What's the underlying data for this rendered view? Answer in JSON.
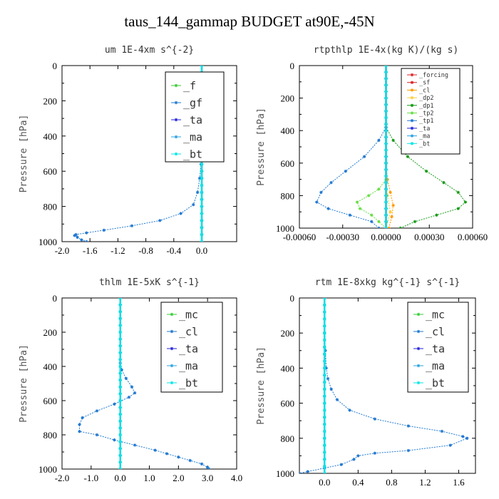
{
  "page_title": "taus_144_gammap  BUDGET at90E,-45N",
  "chart_data": [
    {
      "type": "line",
      "title": "um   1E-4xm s^{-2}",
      "ylabel": "Pressure [hPa]",
      "xlim": [
        -2.0,
        0.5
      ],
      "ylim": [
        1000,
        0
      ],
      "x_ticks": [
        "-2.0",
        "-1.6",
        "-1.2",
        "-0.8",
        "-0.4",
        "0.0"
      ],
      "x_tick_values": [
        -2.0,
        -1.6,
        -1.2,
        -0.8,
        -0.4,
        0.0
      ],
      "y_ticks": [
        "0",
        "200",
        "400",
        "600",
        "800",
        "1000"
      ],
      "grid": false,
      "legend": "top-right",
      "series": [
        {
          "name": "_f",
          "color": "#33cc33",
          "points": [
            [
              0,
              0
            ],
            [
              0,
              200
            ],
            [
              0,
              400
            ],
            [
              0,
              600
            ],
            [
              0,
              800
            ],
            [
              0,
              1000
            ]
          ]
        },
        {
          "name": "_gf",
          "color": "#1f78d1",
          "points": [
            [
              0,
              0
            ],
            [
              0,
              200
            ],
            [
              0,
              400
            ],
            [
              0,
              500
            ],
            [
              -0.01,
              560
            ],
            [
              -0.03,
              640
            ],
            [
              -0.06,
              720
            ],
            [
              -0.12,
              790
            ],
            [
              -0.3,
              840
            ],
            [
              -0.6,
              880
            ],
            [
              -1.0,
              910
            ],
            [
              -1.4,
              935
            ],
            [
              -1.65,
              950
            ],
            [
              -1.8,
              960
            ],
            [
              -1.82,
              965
            ],
            [
              -1.78,
              975
            ],
            [
              -1.72,
              990
            ],
            [
              -1.65,
              1000
            ]
          ]
        },
        {
          "name": "_ta",
          "color": "#2222dd",
          "points": [
            [
              0,
              0
            ],
            [
              0,
              1000
            ]
          ]
        },
        {
          "name": "_ma",
          "color": "#29a3e0",
          "points": [
            [
              0,
              0
            ],
            [
              0,
              1000
            ]
          ]
        },
        {
          "name": "_bt",
          "color": "#00e5e5",
          "points": [
            [
              0,
              0
            ],
            [
              0,
              1000
            ]
          ]
        }
      ]
    },
    {
      "type": "line",
      "title": "rtpthlp   1E-4x(kg K)/(kg s)",
      "ylabel": "Pressure [hPa]",
      "xlim": [
        -0.0006,
        0.0006
      ],
      "ylim": [
        1000,
        0
      ],
      "x_ticks": [
        "-0.00060",
        "-0.00030",
        "0.00000",
        "0.00030",
        "0.00060"
      ],
      "x_tick_values": [
        -0.0006,
        -0.0003,
        0.0,
        0.0003,
        0.0006
      ],
      "y_ticks": [
        "0",
        "200",
        "400",
        "600",
        "800",
        "1000"
      ],
      "grid": false,
      "legend": "top-right",
      "series": [
        {
          "name": "_forcing",
          "color": "#dd2222",
          "points": [
            [
              0,
              0
            ],
            [
              0,
              1000
            ]
          ]
        },
        {
          "name": "_sf",
          "color": "#dd2222",
          "points": [
            [
              0,
              0
            ],
            [
              0,
              1000
            ]
          ]
        },
        {
          "name": "_cl",
          "color": "#ff9900",
          "points": [
            [
              0,
              0
            ],
            [
              0,
              600
            ],
            [
              1e-05,
              700
            ],
            [
              3e-05,
              780
            ],
            [
              5e-05,
              860
            ],
            [
              4e-05,
              930
            ],
            [
              2e-05,
              1000
            ]
          ]
        },
        {
          "name": "_dp2",
          "color": "#ffcc33",
          "points": [
            [
              0,
              0
            ],
            [
              0,
              700
            ],
            [
              1e-05,
              800
            ],
            [
              3e-05,
              900
            ],
            [
              0,
              1000
            ]
          ]
        },
        {
          "name": "_dp1",
          "color": "#119911",
          "points": [
            [
              0,
              0
            ],
            [
              0,
              380
            ],
            [
              5e-05,
              460
            ],
            [
              0.00015,
              560
            ],
            [
              0.00028,
              650
            ],
            [
              0.0004,
              720
            ],
            [
              0.0005,
              780
            ],
            [
              0.00055,
              840
            ],
            [
              0.0005,
              880
            ],
            [
              0.00035,
              920
            ],
            [
              0.0002,
              960
            ],
            [
              0.0001,
              1000
            ]
          ]
        },
        {
          "name": "_tp2",
          "color": "#66dd44",
          "points": [
            [
              0,
              0
            ],
            [
              0,
              700
            ],
            [
              -5e-05,
              760
            ],
            [
              -0.00012,
              800
            ],
            [
              -0.0002,
              840
            ],
            [
              -0.00018,
              880
            ],
            [
              -0.0001,
              920
            ],
            [
              -5e-05,
              960
            ],
            [
              0,
              1000
            ]
          ]
        },
        {
          "name": "_tp1",
          "color": "#1f78d1",
          "points": [
            [
              0,
              0
            ],
            [
              0,
              380
            ],
            [
              -5e-05,
              460
            ],
            [
              -0.00015,
              560
            ],
            [
              -0.00028,
              650
            ],
            [
              -0.00038,
              720
            ],
            [
              -0.00045,
              780
            ],
            [
              -0.00048,
              840
            ],
            [
              -0.0004,
              880
            ],
            [
              -0.00025,
              920
            ],
            [
              -0.0001,
              960
            ],
            [
              -5e-05,
              1000
            ]
          ]
        },
        {
          "name": "_ta",
          "color": "#2222dd",
          "points": [
            [
              0,
              0
            ],
            [
              0,
              1000
            ]
          ]
        },
        {
          "name": "_ma",
          "color": "#29a3e0",
          "points": [
            [
              0,
              0
            ],
            [
              0,
              1000
            ]
          ]
        },
        {
          "name": "_bt",
          "color": "#00e5e5",
          "points": [
            [
              0,
              0
            ],
            [
              0,
              1000
            ]
          ]
        }
      ]
    },
    {
      "type": "line",
      "title": "thlm   1E-5xK s^{-1}",
      "ylabel": "Pressure [hPa]",
      "xlim": [
        -2.0,
        4.0
      ],
      "ylim": [
        1000,
        0
      ],
      "x_ticks": [
        "-2.0",
        "-1.0",
        "0.0",
        "1.0",
        "2.0",
        "3.0",
        "4.0"
      ],
      "x_tick_values": [
        -2.0,
        -1.0,
        0.0,
        1.0,
        2.0,
        3.0,
        4.0
      ],
      "y_ticks": [
        "0",
        "200",
        "400",
        "600",
        "800",
        "1000"
      ],
      "grid": false,
      "legend": "top-right",
      "series": [
        {
          "name": "_mc",
          "color": "#33cc33",
          "points": [
            [
              0,
              0
            ],
            [
              0,
              200
            ],
            [
              0,
              400
            ],
            [
              0,
              600
            ],
            [
              0,
              800
            ],
            [
              0,
              1000
            ]
          ]
        },
        {
          "name": "_cl",
          "color": "#1f78d1",
          "points": [
            [
              0,
              0
            ],
            [
              0,
              380
            ],
            [
              0.05,
              420
            ],
            [
              0.2,
              470
            ],
            [
              0.4,
              520
            ],
            [
              0.5,
              555
            ],
            [
              0.3,
              580
            ],
            [
              -0.2,
              620
            ],
            [
              -0.8,
              660
            ],
            [
              -1.3,
              700
            ],
            [
              -1.4,
              740
            ],
            [
              -1.4,
              780
            ],
            [
              -0.8,
              800
            ],
            [
              -0.2,
              830
            ],
            [
              0.5,
              860
            ],
            [
              1.2,
              890
            ],
            [
              1.6,
              910
            ],
            [
              2.0,
              930
            ],
            [
              2.4,
              950
            ],
            [
              2.8,
              970
            ],
            [
              3.0,
              990
            ],
            [
              3.05,
              1000
            ]
          ]
        },
        {
          "name": "_ta",
          "color": "#2222dd",
          "points": [
            [
              0,
              0
            ],
            [
              0,
              1000
            ]
          ]
        },
        {
          "name": "_ma",
          "color": "#29a3e0",
          "points": [
            [
              0,
              0
            ],
            [
              0,
              1000
            ]
          ]
        },
        {
          "name": "_bt",
          "color": "#00e5e5",
          "points": [
            [
              0,
              0
            ],
            [
              0,
              1000
            ]
          ]
        }
      ]
    },
    {
      "type": "line",
      "title": "rtm   1E-8xkg kg^{-1} s^{-1}",
      "ylabel": "Pressure [hPa]",
      "xlim": [
        -0.3,
        1.8
      ],
      "ylim": [
        1000,
        0
      ],
      "x_ticks": [
        "0.0",
        "0.4",
        "0.8",
        "1.2",
        "1.6"
      ],
      "x_tick_values": [
        0.0,
        0.4,
        0.8,
        1.2,
        1.6
      ],
      "y_ticks": [
        "0",
        "200",
        "400",
        "600",
        "800",
        "1000"
      ],
      "grid": false,
      "legend": "top-right",
      "series": [
        {
          "name": "_mc",
          "color": "#33cc33",
          "points": [
            [
              0,
              0
            ],
            [
              0,
              200
            ],
            [
              0,
              400
            ],
            [
              0,
              600
            ],
            [
              0,
              800
            ],
            [
              0,
              1000
            ]
          ]
        },
        {
          "name": "_cl",
          "color": "#1f78d1",
          "points": [
            [
              0,
              0
            ],
            [
              0,
              200
            ],
            [
              0.01,
              300
            ],
            [
              0.02,
              400
            ],
            [
              0.04,
              460
            ],
            [
              0.08,
              520
            ],
            [
              0.15,
              580
            ],
            [
              0.3,
              640
            ],
            [
              0.6,
              690
            ],
            [
              1.0,
              730
            ],
            [
              1.4,
              760
            ],
            [
              1.65,
              790
            ],
            [
              1.7,
              800
            ],
            [
              1.5,
              840
            ],
            [
              1.0,
              870
            ],
            [
              0.6,
              885
            ],
            [
              0.4,
              900
            ],
            [
              0.35,
              920
            ],
            [
              0.2,
              950
            ],
            [
              0,
              970
            ],
            [
              -0.2,
              990
            ],
            [
              -0.3,
              1000
            ]
          ]
        },
        {
          "name": "_ta",
          "color": "#2222dd",
          "points": [
            [
              0,
              0
            ],
            [
              0,
              1000
            ]
          ]
        },
        {
          "name": "_ma",
          "color": "#29a3e0",
          "points": [
            [
              0,
              0
            ],
            [
              0,
              1000
            ]
          ]
        },
        {
          "name": "_bt",
          "color": "#00e5e5",
          "points": [
            [
              0,
              0
            ],
            [
              0,
              1000
            ]
          ]
        }
      ]
    }
  ]
}
